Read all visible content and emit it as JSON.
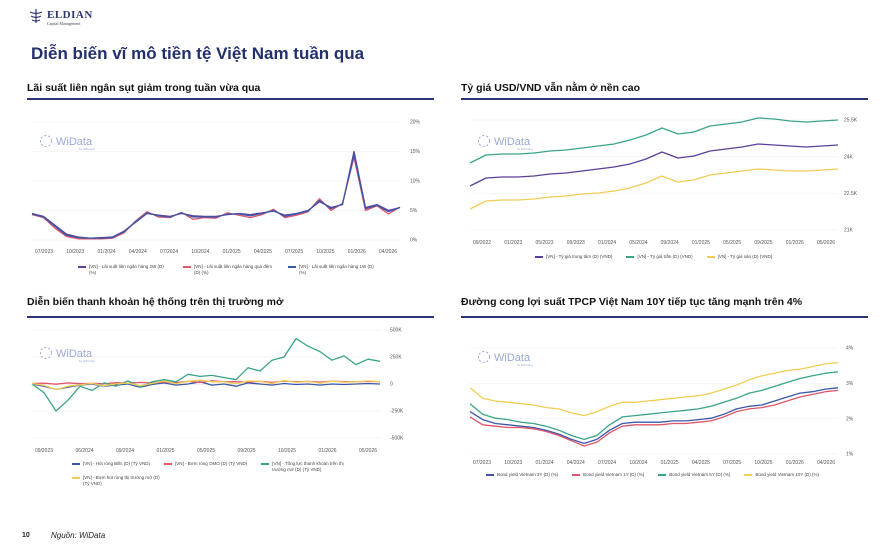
{
  "brand": {
    "name": "ELDIAN",
    "tagline": "Capital Management"
  },
  "page_title": "Diễn biến vĩ mô tiền tệ Việt Nam tuần qua",
  "page_number": "10",
  "source": "Nguồn: WiData",
  "watermark": {
    "text": "WiData",
    "sub": "by WiGroup"
  },
  "panels": [
    {
      "title": "Lãi suất liên ngân sụt giảm trong tuần vừa qua"
    },
    {
      "title": "Tỷ giá USD/VND vẫn nằm ở nền cao"
    },
    {
      "title": "Diễn biến thanh khoản hệ thống trên thị trường mở"
    },
    {
      "title": "Đường cong lợi suất TPCP Việt Nam 10Y tiếp tục tăng mạnh trên 4%"
    }
  ],
  "colors": {
    "brand": "#2b3573"
  },
  "chart_data": [
    {
      "type": "line",
      "x_ticks": [
        "07/2023",
        "10/2023",
        "01/2024",
        "04/2024",
        "07/2024",
        "10/2024",
        "01/2025",
        "04/2025",
        "07/2025",
        "10/2025",
        "01/2026",
        "04/2026"
      ],
      "y_ticks": [
        "20%",
        "15%",
        "10%",
        "5%",
        "0%"
      ],
      "ylim": [
        0,
        20
      ],
      "y_axis_side": "right",
      "series": [
        {
          "name": "[VN] - Lãi suất liên ngân hàng 2W (D) (%)",
          "color": "#5b3f9a",
          "y": [
            4.5,
            4,
            2.5,
            1,
            0.5,
            0.3,
            0.4,
            0.5,
            1.5,
            3,
            4.5,
            4.2,
            4,
            4.5,
            4.1,
            4,
            4,
            4.3,
            4.5,
            4.3,
            4.6,
            4.9,
            4.2,
            4.5,
            5,
            6.5,
            5.5,
            6,
            15,
            5.5,
            6,
            5,
            5.5
          ]
        },
        {
          "name": "[VN] - Lãi suất liên ngân hàng qua đêm (D) (%)",
          "color": "#e0566a",
          "y": [
            4.3,
            3.8,
            2,
            0.6,
            0.2,
            0.2,
            0.2,
            0.3,
            1.2,
            3.2,
            4.8,
            3.9,
            3.8,
            4.7,
            3.5,
            3.8,
            3.7,
            4.6,
            4.2,
            3.8,
            4.3,
            5.2,
            3.8,
            4.2,
            4.8,
            7,
            5,
            6.2,
            14,
            5,
            5.8,
            4.4,
            5.6
          ]
        },
        {
          "name": "[VN] - Lãi suất liên ngân hàng 1W (D) (%)",
          "color": "#3c57a8",
          "y": [
            4.4,
            3.9,
            2.3,
            0.8,
            0.4,
            0.3,
            0.3,
            0.4,
            1.4,
            3.1,
            4.6,
            4.1,
            3.9,
            4.6,
            3.9,
            3.9,
            3.9,
            4.4,
            4.4,
            4.1,
            4.5,
            5,
            4,
            4.4,
            4.9,
            6.7,
            5.3,
            6.1,
            14.5,
            5.3,
            5.9,
            4.8,
            5.5
          ]
        }
      ]
    },
    {
      "type": "line",
      "x_ticks": [
        "09/2022",
        "01/2023",
        "05/2023",
        "09/2023",
        "01/2024",
        "05/2024",
        "09/2024",
        "01/2025",
        "05/2025",
        "09/2025",
        "01/2026",
        "05/2026"
      ],
      "y_ticks": [
        "25.5K",
        "24K",
        "22.5K",
        "21K"
      ],
      "ylim": [
        21000,
        26500
      ],
      "y_axis_side": "right",
      "series": [
        {
          "name": "[VN] - Tỷ giá trung tâm (D) (VND)",
          "color": "#5b3f9a",
          "y": [
            23200,
            23600,
            23650,
            23650,
            23700,
            23800,
            23850,
            23950,
            24050,
            24150,
            24300,
            24550,
            24900,
            24600,
            24700,
            24950,
            25050,
            25150,
            25300,
            25250,
            25200,
            25150,
            25200,
            25250
          ]
        },
        {
          "name": "[VN] - Tỷ giá trần (D) (VND)",
          "color": "#3aa48a",
          "y": [
            24350,
            24750,
            24800,
            24800,
            24850,
            24950,
            25000,
            25100,
            25200,
            25300,
            25500,
            25750,
            26100,
            25800,
            25900,
            26200,
            26300,
            26400,
            26600,
            26550,
            26450,
            26400,
            26450,
            26500
          ]
        },
        {
          "name": "[VN] - Tỷ giá sàn (D) (VND)",
          "color": "#f1cd57",
          "y": [
            22050,
            22450,
            22500,
            22500,
            22550,
            22650,
            22700,
            22800,
            22850,
            22950,
            23100,
            23350,
            23700,
            23400,
            23500,
            23750,
            23850,
            23950,
            24050,
            24000,
            23950,
            23950,
            24000,
            24050
          ]
        }
      ]
    },
    {
      "type": "line",
      "x_ticks": [
        "09/2023",
        "06/2024",
        "09/2024",
        "01/2025",
        "05/2025",
        "09/2025",
        "10/2025",
        "01/2026",
        "05/2026"
      ],
      "y_ticks": [
        "500K",
        "250K",
        "0",
        "-250K",
        "-500K"
      ],
      "ylim": [
        -500000,
        500000
      ],
      "y_axis_side": "right",
      "series": [
        {
          "name": "[VN] - Hút ròng Bills (D) (Tỷ VND)",
          "color": "#3c57a8",
          "y": [
            0,
            -20000,
            -50000,
            -30000,
            -10000,
            0,
            -20000,
            -10000,
            0,
            -30000,
            -5000,
            10000,
            -10000,
            0,
            20000,
            -10000,
            0,
            -20000,
            10000,
            0,
            -10000,
            5000,
            -5000,
            0,
            -10000,
            0,
            -5000,
            0,
            5000,
            0
          ]
        },
        {
          "name": "[VN] - Bơm ròng OMO (D) (Tỷ VND)",
          "color": "#e0566a",
          "y": [
            5000,
            8000,
            -2000,
            10000,
            3000,
            6000,
            2000,
            12000,
            8000,
            15000,
            10000,
            18000,
            12000,
            25000,
            15000,
            30000,
            20000,
            22000,
            18000,
            25000,
            15000,
            28000,
            20000,
            24000,
            18000,
            26000,
            22000,
            20000,
            24000,
            22000
          ]
        },
        {
          "name": "[VN] - Tổng lực thanh khoản trên thị trường mở (D) (Tỷ VND)",
          "color": "#3aa48a",
          "y": [
            0,
            -80000,
            -250000,
            -150000,
            -20000,
            -60000,
            10000,
            -20000,
            30000,
            -30000,
            20000,
            40000,
            20000,
            90000,
            70000,
            80000,
            60000,
            40000,
            150000,
            120000,
            220000,
            250000,
            420000,
            350000,
            300000,
            220000,
            260000,
            180000,
            230000,
            210000
          ]
        },
        {
          "name": "[VN] - Bơm hút ròng thị trường mở (D) (Tỷ VND)",
          "color": "#f1cd57",
          "y": [
            5000,
            -12000,
            -52000,
            -20000,
            -7000,
            6000,
            -18000,
            2000,
            8000,
            -15000,
            5000,
            28000,
            2000,
            25000,
            35000,
            20000,
            20000,
            2000,
            28000,
            25000,
            5000,
            33000,
            15000,
            24000,
            8000,
            26000,
            17000,
            20000,
            29000,
            22000
          ]
        }
      ]
    },
    {
      "type": "line",
      "x_ticks": [
        "07/2023",
        "10/2023",
        "01/2024",
        "04/2024",
        "07/2024",
        "10/2024",
        "01/2025",
        "04/2025",
        "07/2025",
        "10/2025",
        "01/2026",
        "04/2026"
      ],
      "y_ticks": [
        "4%",
        "3%",
        "2%",
        "1%"
      ],
      "ylim": [
        1,
        5
      ],
      "y_axis_side": "right",
      "series": [
        {
          "name": "Bond yield Vietnam 3Y (D) (%)",
          "color": "#3c57a8",
          "y": [
            2.6,
            2.3,
            2.15,
            2.1,
            2.05,
            2.0,
            1.9,
            1.75,
            1.55,
            1.4,
            1.55,
            1.9,
            2.15,
            2.2,
            2.2,
            2.2,
            2.25,
            2.25,
            2.3,
            2.35,
            2.5,
            2.7,
            2.8,
            2.85,
            3.0,
            3.15,
            3.3,
            3.35,
            3.45,
            3.5
          ]
        },
        {
          "name": "Bond yield Vietnam 1Y (D) (%)",
          "color": "#e0566a",
          "y": [
            2.4,
            2.1,
            2.05,
            2.0,
            2.0,
            1.95,
            1.85,
            1.7,
            1.5,
            1.3,
            1.45,
            1.8,
            2.05,
            2.1,
            2.1,
            2.1,
            2.15,
            2.15,
            2.2,
            2.25,
            2.4,
            2.6,
            2.7,
            2.75,
            2.85,
            3.0,
            3.15,
            3.25,
            3.35,
            3.4
          ]
        },
        {
          "name": "Bond yield Vietnam 5Y (D) (%)",
          "color": "#3aa48a",
          "y": [
            2.9,
            2.5,
            2.35,
            2.3,
            2.2,
            2.15,
            2.05,
            1.9,
            1.7,
            1.55,
            1.7,
            2.1,
            2.4,
            2.45,
            2.5,
            2.55,
            2.6,
            2.65,
            2.7,
            2.8,
            2.95,
            3.1,
            3.3,
            3.4,
            3.55,
            3.7,
            3.85,
            3.95,
            4.05,
            4.1
          ]
        },
        {
          "name": "Bond yield Vietnam 10Y (D) (%)",
          "color": "#f1cd57",
          "y": [
            3.5,
            3.1,
            3.0,
            2.95,
            2.9,
            2.85,
            2.75,
            2.7,
            2.55,
            2.45,
            2.6,
            2.8,
            2.95,
            2.95,
            3.0,
            3.05,
            3.1,
            3.15,
            3.2,
            3.3,
            3.45,
            3.6,
            3.8,
            3.95,
            4.05,
            4.15,
            4.2,
            4.3,
            4.4,
            4.45
          ]
        }
      ]
    }
  ]
}
